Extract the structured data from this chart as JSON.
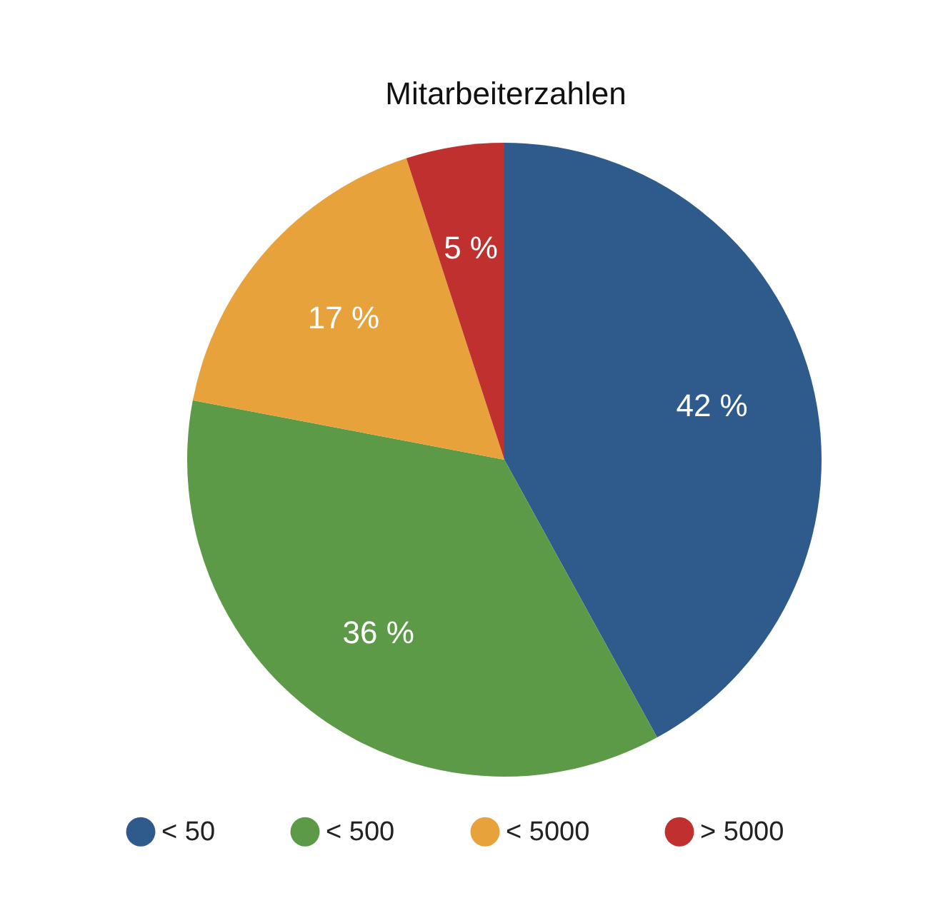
{
  "chart_data": {
    "type": "pie",
    "title": "Mitarbeiterzahlen",
    "categories": [
      "< 50",
      "< 500",
      "< 5000",
      "> 5000"
    ],
    "values": [
      42,
      36,
      17,
      5
    ],
    "colors": [
      "#2e5a8c",
      "#5c9a47",
      "#e8a23c",
      "#c0302f"
    ],
    "value_labels": [
      "42 %",
      "36 %",
      "17 %",
      "5 %"
    ],
    "legend": "bottom"
  }
}
